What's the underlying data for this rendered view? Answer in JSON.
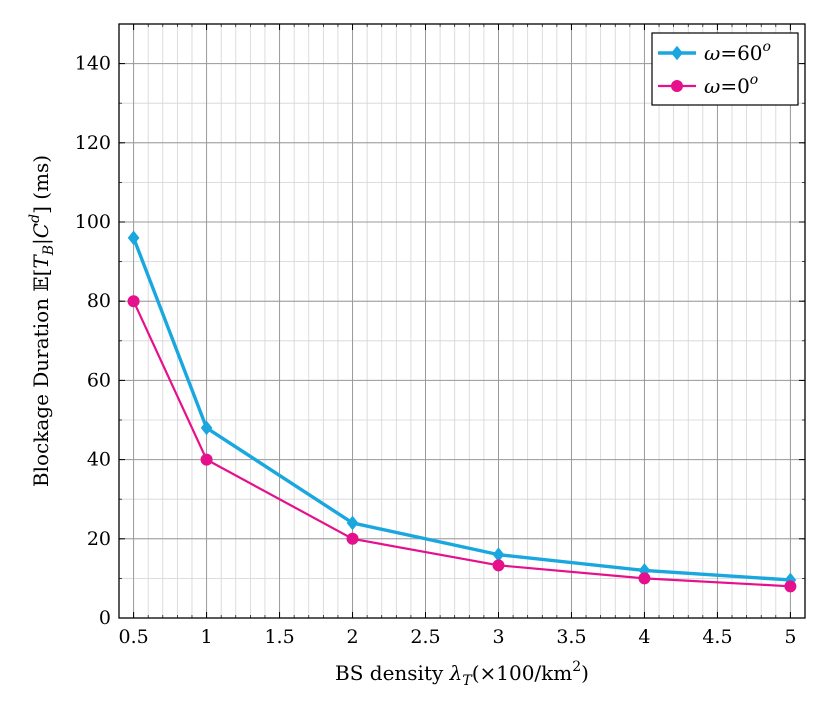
{
  "chart_data": {
    "type": "line",
    "title": "",
    "xlabel": {
      "prefix": "BS density ",
      "symbol": "λ",
      "symbol_sub": "T",
      "suffix": "(×100/km",
      "suffix_sup": "2",
      "close": ")"
    },
    "ylabel": {
      "prefix": "Blockage Duration ",
      "e_symbol": "𝔼[",
      "t_symbol": "T",
      "t_sub": "B",
      "bar": "|",
      "c_symbol": "C",
      "c_sup": "d",
      "close": "]",
      "unit": " (ms)"
    },
    "xlim": [
      0.4,
      5.1
    ],
    "ylim": [
      0,
      150
    ],
    "x_ticks": [
      0.5,
      1,
      1.5,
      2,
      2.5,
      3,
      3.5,
      4,
      4.5,
      5
    ],
    "x_tick_labels": [
      "0.5",
      "1",
      "1.5",
      "2",
      "2.5",
      "3",
      "3.5",
      "4",
      "4.5",
      "5"
    ],
    "y_ticks": [
      0,
      20,
      40,
      60,
      80,
      100,
      120,
      140
    ],
    "y_tick_labels": [
      "0",
      "20",
      "40",
      "60",
      "80",
      "100",
      "120",
      "140"
    ],
    "grid": true,
    "legend_position": "top-right",
    "series": [
      {
        "name": "ω=60",
        "name_sup": "o",
        "color": "#1aa7e0",
        "marker": "diamond",
        "x": [
          0.5,
          1,
          2,
          3,
          4,
          5
        ],
        "y": [
          96,
          48,
          24,
          16,
          12,
          9.6
        ]
      },
      {
        "name": "ω=0",
        "name_sup": "o",
        "color": "#e6108c",
        "marker": "circle",
        "x": [
          0.5,
          1,
          2,
          3,
          4,
          5
        ],
        "y": [
          80,
          40,
          20,
          13.3,
          10,
          8
        ]
      }
    ]
  }
}
